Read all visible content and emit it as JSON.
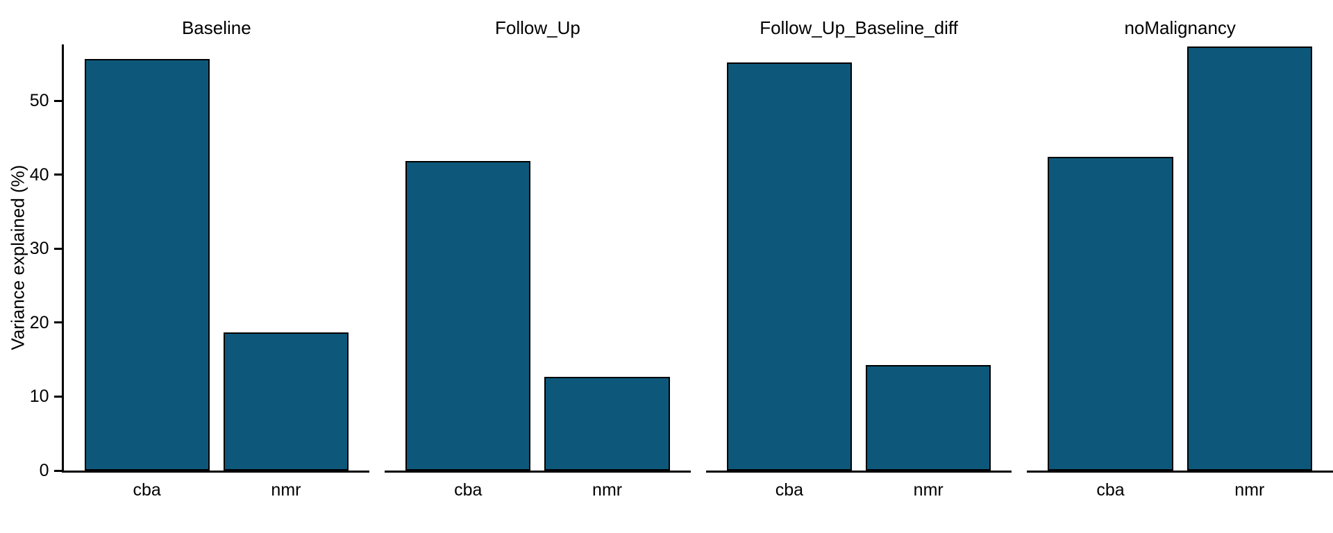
{
  "chart_data": {
    "type": "bar",
    "title": "",
    "ylabel": "Variance explained (%)",
    "xlabel": "",
    "categories": [
      "cba",
      "nmr"
    ],
    "facets": [
      {
        "title": "Baseline",
        "values": [
          55.6,
          18.7
        ]
      },
      {
        "title": "Follow_Up",
        "values": [
          41.8,
          12.7
        ]
      },
      {
        "title": "Follow_Up_Baseline_diff",
        "values": [
          55.2,
          14.3
        ]
      },
      {
        "title": "noMalignancy",
        "values": [
          42.4,
          57.3
        ]
      }
    ],
    "y_ticks": [
      0,
      10,
      20,
      30,
      40,
      50
    ],
    "ylim": [
      0,
      57.6
    ],
    "grid": false,
    "legend": false,
    "bar_fill_color": "#0D587A",
    "bar_border_color": "#000000",
    "axis_color": "#000000",
    "text_color": "#000000",
    "background_color": "#ffffff"
  }
}
